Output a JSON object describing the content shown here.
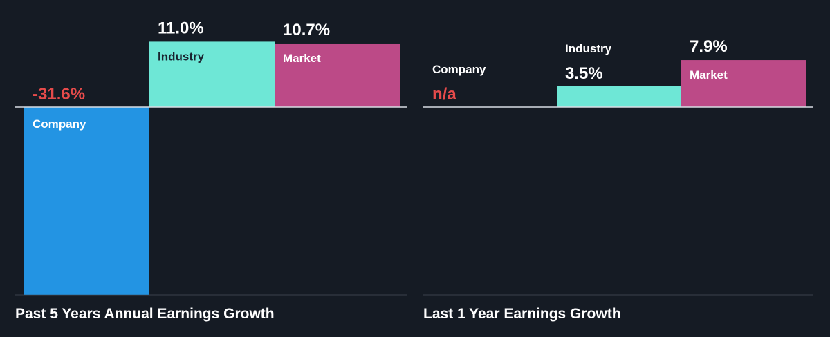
{
  "colors": {
    "background": "#151b24",
    "company": "#2394e3",
    "industry": "#6ee7d6",
    "market": "#bc4a87",
    "negative": "#e64b4b",
    "axis": "#d8dde3",
    "baseline": "#3a414b",
    "title": "#ffffff"
  },
  "chart_data": [
    {
      "type": "bar",
      "title": "Past 5 Years Annual Earnings Growth",
      "categories": [
        "Company",
        "Industry",
        "Market"
      ],
      "values": [
        -31.6,
        11.0,
        10.7
      ],
      "value_labels": [
        "-31.6%",
        "11.0%",
        "10.7%"
      ],
      "unit": "%",
      "ylim": [
        -31.6,
        11.0
      ],
      "grid": false,
      "legend": "none"
    },
    {
      "type": "bar",
      "title": "Last 1 Year Earnings Growth",
      "categories": [
        "Company",
        "Industry",
        "Market"
      ],
      "values": [
        null,
        3.5,
        7.9
      ],
      "value_labels": [
        "n/a",
        "3.5%",
        "7.9%"
      ],
      "unit": "%",
      "ylim": [
        -31.6,
        11.0
      ],
      "grid": false,
      "legend": "none"
    }
  ]
}
